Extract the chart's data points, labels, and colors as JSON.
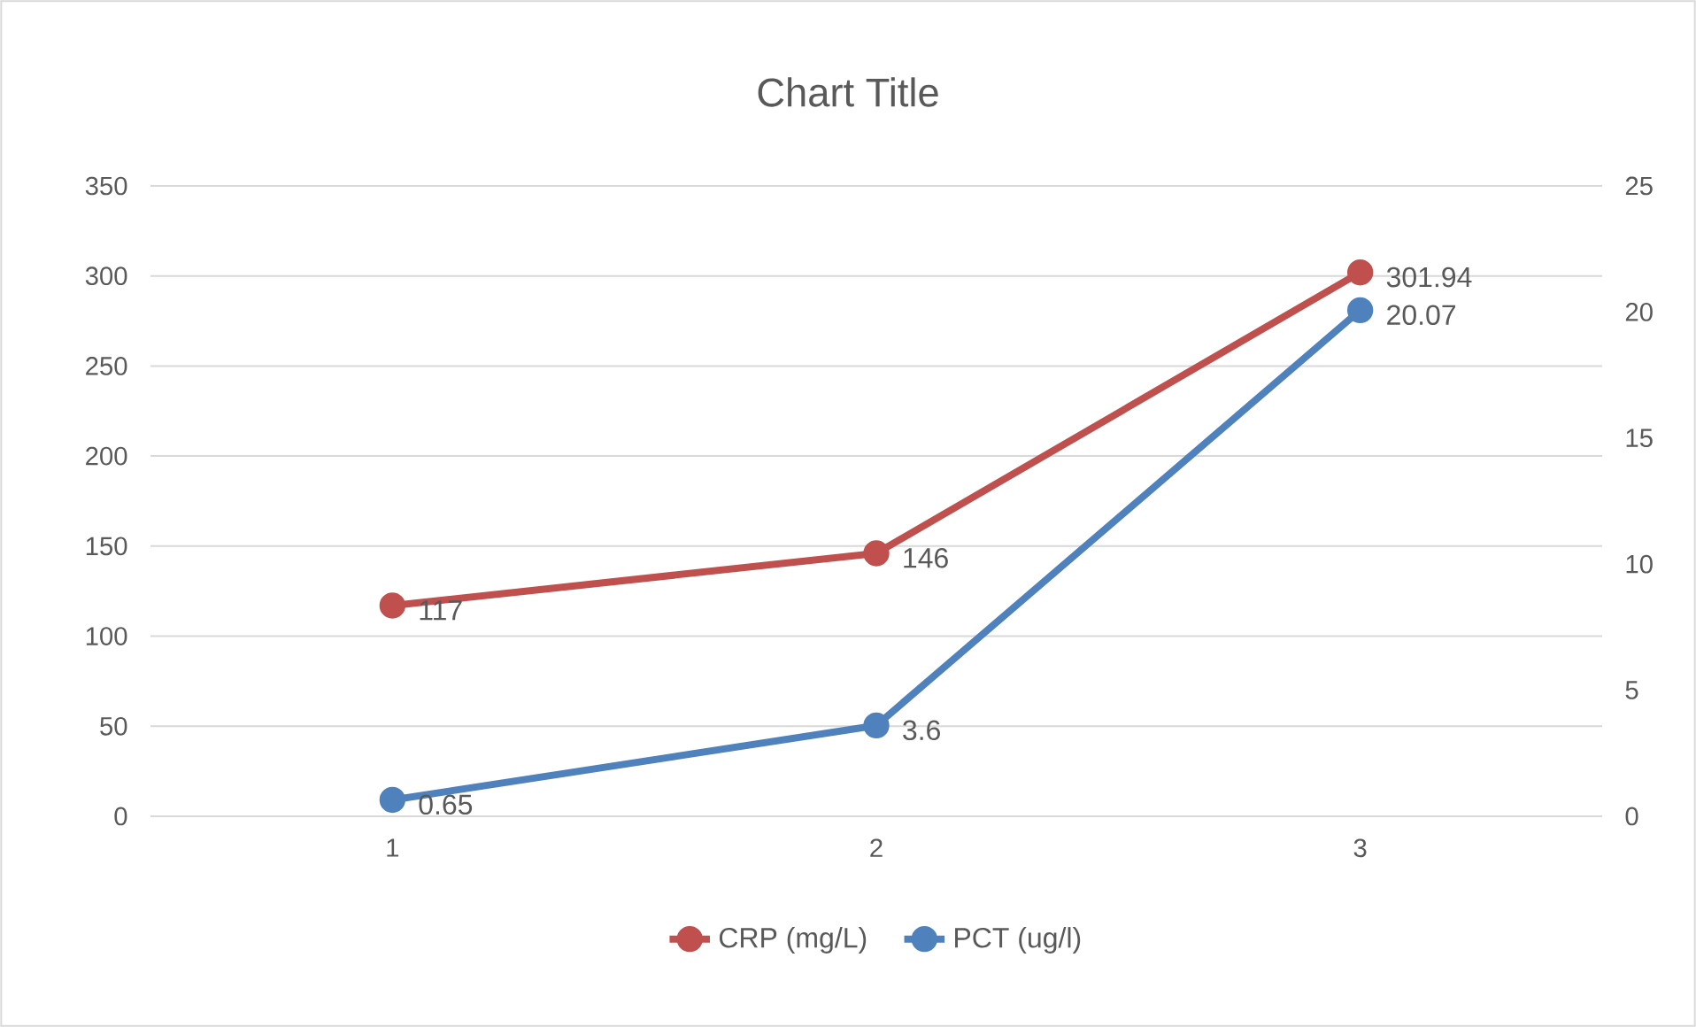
{
  "chart_data": {
    "type": "line",
    "title": "Chart Title",
    "categories": [
      "1",
      "2",
      "3"
    ],
    "series": [
      {
        "name": "CRP (mg/L)",
        "color": "#c0504d",
        "values": [
          117,
          146,
          301.94
        ]
      },
      {
        "name": "PCT (ug/l)",
        "color": "#4f81bd",
        "values": [
          0.65,
          3.6,
          20.07
        ],
        "axis": "y2"
      }
    ],
    "ylim": [
      0,
      350
    ],
    "yticks": [
      0,
      50,
      100,
      150,
      200,
      250,
      300,
      350
    ],
    "y2lim": [
      0,
      25
    ],
    "y2ticks": [
      0,
      5,
      10,
      15,
      20,
      25
    ],
    "grid": "y",
    "legend": "bottom",
    "marker": "circle",
    "line_style": "solid",
    "data_labels": true
  }
}
